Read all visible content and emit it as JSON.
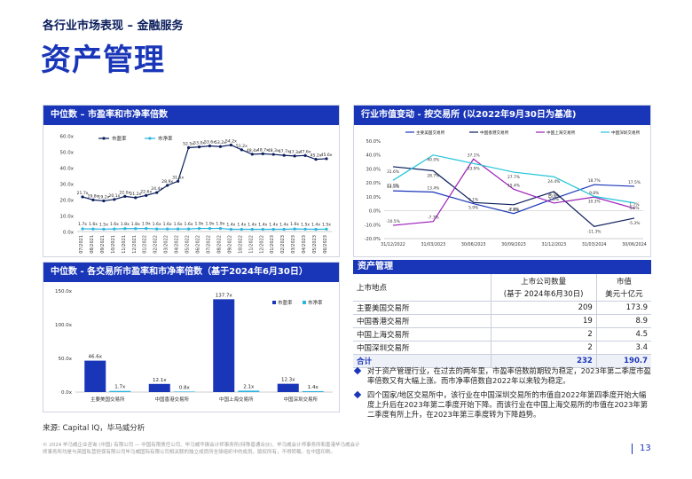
{
  "header": {
    "section": "各行业市场表现 – 金融服务",
    "title": "资产管理"
  },
  "panels": {
    "pe_pb": {
      "title": "中位数 – 市盈率和市净率倍数",
      "legend_pe": "市盈率",
      "legend_pb": "市净率"
    },
    "mcap_change": {
      "title": "行业市值变动 - 按交易所 (以2022年9月30日为基准)"
    },
    "exchange": {
      "title": "中位数 - 各交易所市盈率和市净率倍数（基于2024年6月30日）",
      "legend_pe": "市盈率",
      "legend_pb": "市净率"
    }
  },
  "colors": {
    "primary": "#1a36b8",
    "navy": "#0a1d5c",
    "light_blue": "#2ab4e0",
    "purple": "#9b1fb8",
    "teal": "#20c4d8"
  },
  "chart_data": [
    {
      "type": "line",
      "ylim": [
        0,
        60
      ],
      "y_ticks": [
        "0.0x",
        "10.0x",
        "20.0x",
        "30.0x",
        "40.0x",
        "50.0x",
        "60.0x"
      ],
      "x": [
        "07/2021",
        "08/2021",
        "09/2021",
        "10/2021",
        "11/2021",
        "12/2021",
        "01/2022",
        "02/2022",
        "03/2022",
        "04/2022",
        "05/2022",
        "06/2022",
        "07/2022",
        "08/2022",
        "09/2022",
        "10/2022",
        "11/2022",
        "12/2022",
        "01/2023",
        "02/2023",
        "03/2023",
        "04/2023",
        "05/2023",
        "06/2023"
      ],
      "series": [
        {
          "name": "市盈率",
          "values": [
            21.7,
            19.8,
            19.2,
            20.1,
            22.0,
            21.2,
            22.6,
            24.4,
            28.9,
            31.5,
            52.5,
            53.0,
            53.6,
            53.2,
            54.2,
            51.2,
            48.4,
            48.7,
            48.3,
            47.7,
            47.3,
            47.6,
            45.2,
            45.6
          ],
          "labels": [
            "21.7x",
            "19.8x",
            "19.2x",
            "20.1x",
            "22.0x",
            "21.2x",
            "22.6x",
            "24.4x",
            "28.9x",
            "31.5x",
            "52.5x",
            "53.0x",
            "53.6x",
            "53.2x",
            "54.2x",
            "51.2x",
            "48.4x",
            "48.7x",
            "48.3x",
            "47.7x",
            "47.3x",
            "47.6x",
            "45.2x",
            "45.6x"
          ]
        },
        {
          "name": "市净率",
          "values": [
            1.7,
            1.6,
            1.5,
            1.6,
            1.8,
            1.8,
            1.9,
            1.6,
            1.6,
            1.6,
            1.6,
            1.9,
            1.9,
            1.9,
            1.4,
            1.4,
            1.4,
            1.4,
            1.4,
            1.4,
            1.6,
            1.5,
            1.4,
            1.5
          ],
          "labels": [
            "1.7x",
            "1.6x",
            "1.5x",
            "1.6x",
            "1.8x",
            "1.8x",
            "1.9x",
            "1.6x",
            "1.6x",
            "1.6x",
            "1.6x",
            "1.9x",
            "1.9x",
            "1.9x",
            "1.4x",
            "1.4x",
            "1.4x",
            "1.4x",
            "1.4x",
            "1.4x",
            "1.6x",
            "1.5x",
            "1.4x",
            "1.5x"
          ]
        }
      ]
    },
    {
      "type": "line",
      "ylim": [
        -20,
        50
      ],
      "y_ticks": [
        "-20.0%",
        "-10.0%",
        "0.0%",
        "10.0%",
        "20.0%",
        "30.0%",
        "40.0%",
        "50.0%"
      ],
      "categories": [
        "31/12/2022",
        "31/03/2023",
        "30/06/2023",
        "30/09/2023",
        "31/12/2023",
        "31/03/2024",
        "30/06/2024"
      ],
      "series": [
        {
          "name": "主要美国交易所",
          "values": [
            14.3,
            13.4,
            5.1,
            -2.0,
            8.7,
            18.7,
            17.5
          ],
          "labels": [
            "14.3%",
            "13.4%",
            "5.1%",
            "-2.0%",
            "8.7%",
            "18.7%",
            "17.5%"
          ]
        },
        {
          "name": "中国香港交易所",
          "values": [
            31.6,
            28.7,
            5.9,
            4.3,
            13.8,
            -11.3,
            -5.3
          ],
          "labels": [
            "31.6%",
            "28.7%",
            "5.9%",
            "4.3%",
            "13.8%",
            "-11.3%",
            "-5.3%"
          ]
        },
        {
          "name": "中国上海交易所",
          "values": [
            -10.5,
            -7.7,
            37.1,
            15.4,
            5.5,
            9.8,
            1.7
          ],
          "labels": [
            "-10.5%",
            "-7.7%",
            "37.1%",
            "15.4%",
            "5.5%",
            "9.8%",
            "1.7%"
          ]
        },
        {
          "name": "中国深圳交易所",
          "values": [
            21.8,
            40.0,
            33.9,
            27.7,
            24.4,
            10.3,
            5.6
          ],
          "labels": [
            "21.8%",
            "40.0%",
            "33.9%",
            "27.7%",
            "24.4%",
            "10.3%",
            "5.6%"
          ]
        }
      ]
    },
    {
      "type": "bar",
      "ylim": [
        0,
        150
      ],
      "y_ticks": [
        "0.0x",
        "50.0x",
        "100.0x",
        "150.0x"
      ],
      "categories": [
        "主要美国交易所",
        "中国香港交易所",
        "中国上海交易所",
        "中国深圳交易所"
      ],
      "series": [
        {
          "name": "市盈率",
          "values": [
            46.6,
            12.1,
            137.7,
            12.3
          ],
          "labels": [
            "46.6x",
            "12.1x",
            "137.7x",
            "12.3x"
          ]
        },
        {
          "name": "市净率",
          "values": [
            1.7,
            0.8,
            2.1,
            1.4
          ],
          "labels": [
            "1.7x",
            "0.8x",
            "2.1x",
            "1.4x"
          ]
        }
      ]
    }
  ],
  "table": {
    "title": "资产管理",
    "col_location": "上市地点",
    "col_count_1": "上市公司数量",
    "col_count_2": "(基于 2024年6月30日)",
    "col_mcap_1": "市值",
    "col_mcap_2": "美元十亿元",
    "rows": [
      {
        "name": "主要美国交易所",
        "count": "209",
        "mcap": "173.9"
      },
      {
        "name": "中国香港交易所",
        "count": "19",
        "mcap": "8.9"
      },
      {
        "name": "中国上海交易所",
        "count": "2",
        "mcap": "4.5"
      },
      {
        "name": "中国深圳交易所",
        "count": "2",
        "mcap": "3.4"
      }
    ],
    "total": {
      "name": "合计",
      "count": "232",
      "mcap": "190.7"
    }
  },
  "bullets": [
    "对于资产管理行业，在过去的两年里，市盈率倍数前期较为稳定，2023年第二季度市盈率倍数又有大幅上涨。而市净率倍数自2022年以来较为稳定。",
    "四个国家/地区交易所中，该行业在中国深圳交易所的市值自2022年第四季度开始大幅度上升后在2023年第二季度开始下降。而该行业在中国上海交易所的市值在2023年第二季度有所上升，在2023年第三季度转为下降趋势。"
  ],
  "source": "来源: Capital IQ，毕马威分析",
  "footer_note": "© 2024 毕马威企业咨询 (中国) 有限公司 — 中国有限责任公司、毕马威华振会计师事务所(特殊普通合伙)、毕马威会计师事务所和香港毕马威会计师事务所均是与英国私营担保有限公司毕马威国际有限公司相关联的独立成员所全球组织中的成员。版权所有，不得转载。在中国印刷。",
  "page_number": "13"
}
